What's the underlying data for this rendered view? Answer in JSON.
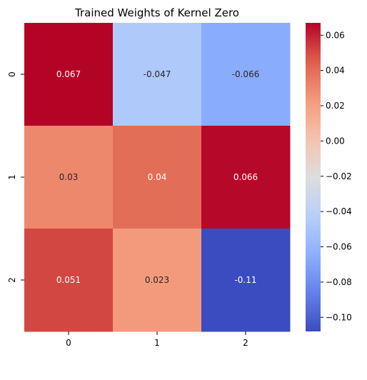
{
  "chart_data": {
    "type": "heatmap",
    "title": "Trained Weights of Kernel Zero",
    "xlabel": "",
    "ylabel": "",
    "x_categories": [
      "0",
      "1",
      "2"
    ],
    "y_categories": [
      "0",
      "1",
      "2"
    ],
    "values": [
      [
        0.067,
        -0.047,
        -0.066
      ],
      [
        0.03,
        0.04,
        0.066
      ],
      [
        0.051,
        0.023,
        -0.11
      ]
    ],
    "annotations": [
      [
        "0.067",
        "-0.047",
        "-0.066"
      ],
      [
        "0.03",
        "0.04",
        "0.066"
      ],
      [
        "0.051",
        "0.023",
        "-0.11"
      ]
    ],
    "colormap": "coolwarm",
    "vmin": -0.108,
    "vmax": 0.067,
    "colorbar_ticks": [
      0.06,
      0.04,
      0.02,
      0.0,
      -0.02,
      -0.04,
      -0.06,
      -0.08,
      -0.1
    ],
    "colorbar_tick_labels": [
      "0.06",
      "0.04",
      "0.02",
      "0.00",
      "−0.02",
      "−0.04",
      "−0.06",
      "−0.08",
      "−0.10"
    ],
    "grid": false,
    "legend": "colorbar-right"
  }
}
